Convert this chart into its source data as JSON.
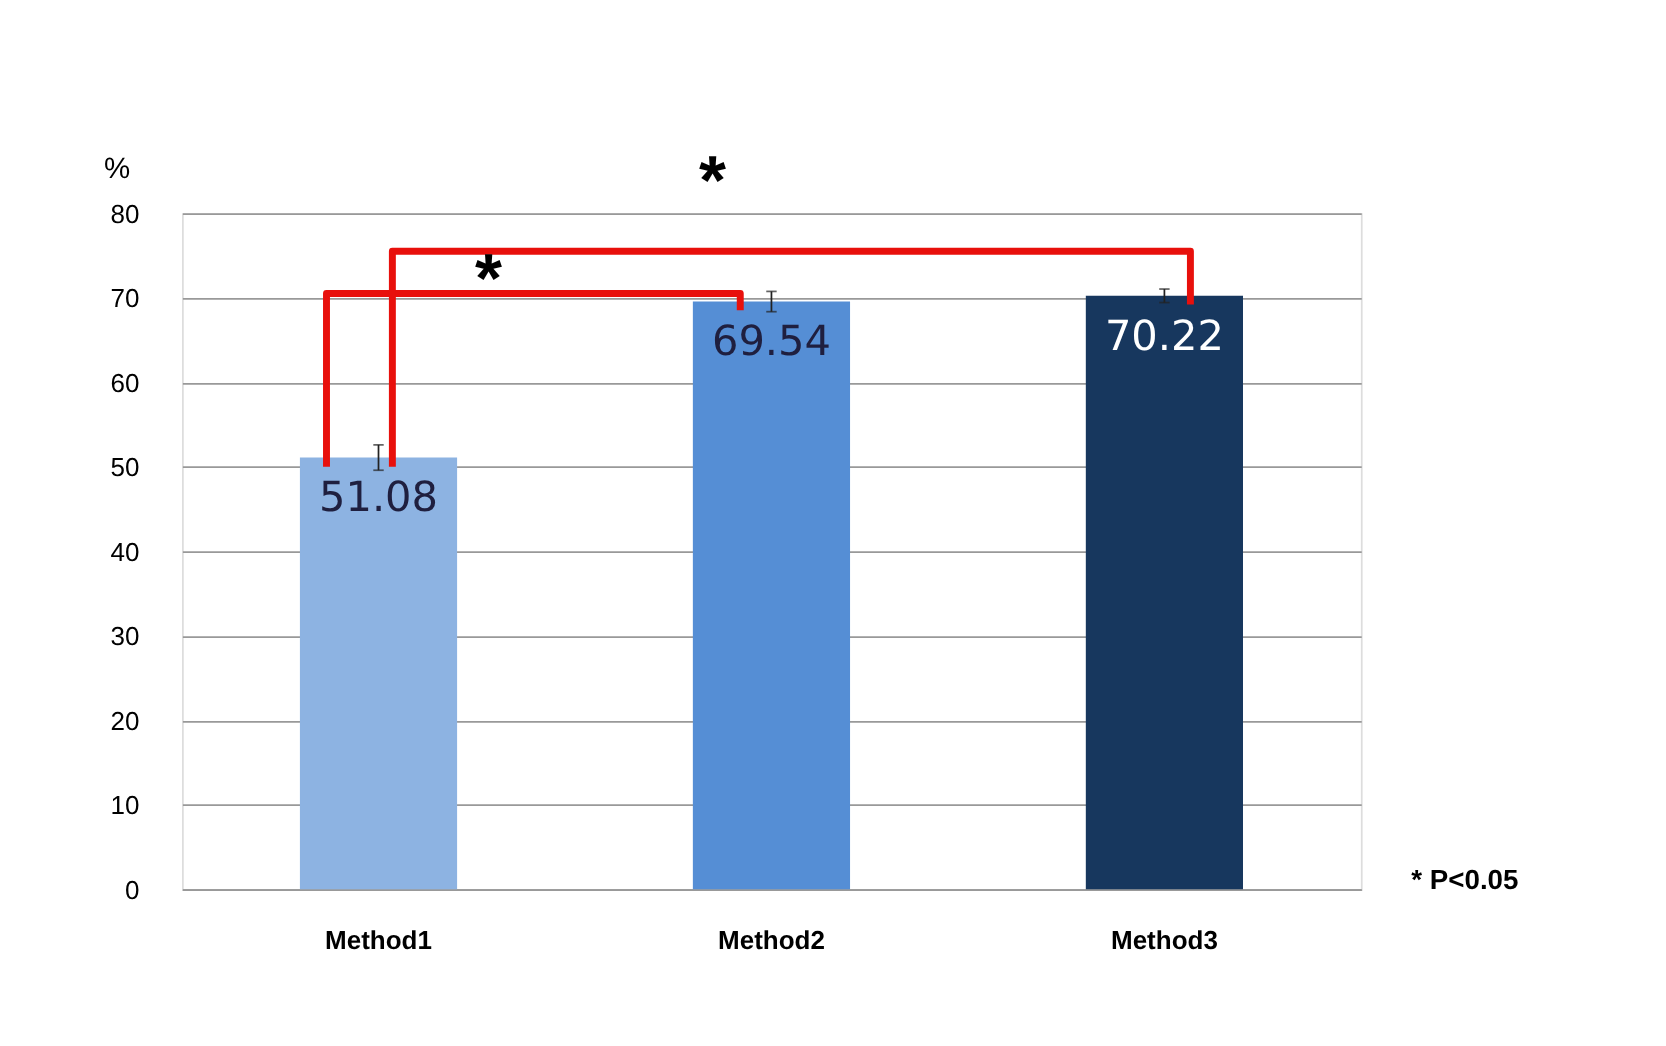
{
  "chart_data": {
    "type": "bar",
    "ylabel": "%",
    "categories": [
      "Method1",
      "Method2",
      "Method3"
    ],
    "values": [
      51.08,
      69.54,
      70.22
    ],
    "errors": [
      1.5,
      1.2,
      0.8
    ],
    "colors": [
      "#8db3e2",
      "#558ed5",
      "#17375e"
    ],
    "ylim": [
      0,
      80
    ],
    "yticks": [
      0,
      10,
      20,
      30,
      40,
      50,
      60,
      70,
      80
    ],
    "grid": "y",
    "data_labels": true,
    "annotations": [
      "*",
      "*",
      "* P<0.05"
    ]
  }
}
